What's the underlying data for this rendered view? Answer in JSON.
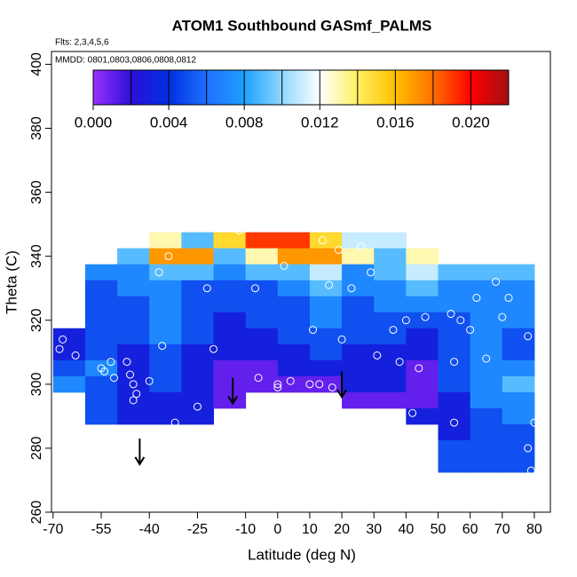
{
  "chart_data": {
    "type": "heatmap",
    "title": "ATOM1 Southbound GASmf_PALMS",
    "subtitle": "Flts: 2,3,4,5,6",
    "annotation": "MMDD: 0801,0803,0806,0808,0812",
    "xlabel": "Latitude (deg N)",
    "ylabel": "Theta (C)",
    "xlim": [
      -70.5,
      85
    ],
    "ylim": [
      260,
      404
    ],
    "xticks": [
      -70,
      -55,
      -40,
      -25,
      -10,
      0,
      10,
      20,
      30,
      40,
      50,
      60,
      70,
      80
    ],
    "yticks": [
      260,
      280,
      300,
      320,
      340,
      360,
      380,
      400
    ],
    "x": [
      -65,
      -55,
      -45,
      -35,
      -25,
      -15,
      -5,
      5,
      15,
      25,
      35,
      45,
      55,
      65,
      75
    ],
    "y": [
      345,
      340,
      335,
      330,
      325,
      320,
      315,
      310,
      305,
      300,
      295,
      290,
      285,
      280,
      275
    ],
    "z": [
      [
        null,
        null,
        null,
        0.013,
        0.009,
        0.015,
        0.019,
        0.019,
        0.015,
        0.011,
        0.011,
        null,
        null,
        null,
        null
      ],
      [
        null,
        null,
        0.009,
        0.017,
        0.017,
        0.009,
        0.013,
        0.017,
        0.017,
        0.013,
        0.009,
        0.013,
        null,
        null,
        null
      ],
      [
        null,
        0.007,
        0.007,
        0.009,
        0.009,
        0.007,
        0.009,
        0.009,
        0.011,
        0.007,
        0.009,
        0.011,
        0.009,
        0.009,
        0.009
      ],
      [
        null,
        0.005,
        0.007,
        0.007,
        0.005,
        0.005,
        0.005,
        0.007,
        0.009,
        0.007,
        0.007,
        0.009,
        0.007,
        0.007,
        0.007
      ],
      [
        null,
        0.005,
        0.005,
        0.007,
        0.005,
        0.005,
        0.005,
        0.005,
        0.007,
        0.005,
        0.007,
        0.007,
        0.007,
        0.007,
        0.007
      ],
      [
        null,
        0.005,
        0.005,
        0.007,
        0.005,
        0.003,
        0.005,
        0.005,
        0.007,
        0.005,
        0.005,
        0.005,
        0.005,
        0.007,
        0.007
      ],
      [
        0.003,
        0.005,
        0.005,
        0.007,
        0.005,
        0.003,
        0.003,
        0.005,
        0.005,
        0.005,
        0.005,
        0.003,
        0.005,
        0.007,
        0.005
      ],
      [
        0.003,
        0.005,
        0.003,
        0.005,
        0.003,
        0.003,
        0.003,
        0.003,
        0.005,
        0.003,
        0.003,
        0.003,
        0.005,
        0.007,
        0.005
      ],
      [
        0.005,
        0.007,
        0.003,
        0.005,
        0.003,
        0.001,
        0.001,
        0.003,
        0.003,
        0.003,
        0.003,
        0.001,
        0.005,
        0.007,
        0.007
      ],
      [
        0.007,
        0.005,
        0.003,
        0.005,
        0.003,
        0.001,
        0.001,
        0.001,
        0.001,
        0.003,
        0.003,
        0.001,
        0.005,
        0.007,
        0.009
      ],
      [
        null,
        0.005,
        0.003,
        0.003,
        0.003,
        0.001,
        null,
        null,
        null,
        0.001,
        0.001,
        0.001,
        0.003,
        0.007,
        0.007
      ],
      [
        null,
        0.005,
        0.003,
        0.003,
        0.003,
        null,
        null,
        null,
        null,
        null,
        null,
        0.003,
        0.003,
        0.005,
        0.007
      ],
      [
        null,
        null,
        null,
        null,
        null,
        null,
        null,
        null,
        null,
        null,
        null,
        null,
        0.003,
        0.005,
        0.005
      ],
      [
        null,
        null,
        null,
        null,
        null,
        null,
        null,
        null,
        null,
        null,
        null,
        null,
        0.005,
        0.005,
        0.005
      ],
      [
        null,
        null,
        null,
        null,
        null,
        null,
        null,
        null,
        null,
        null,
        null,
        null,
        0.005,
        0.005,
        0.005
      ]
    ],
    "colorscale": {
      "breaks": [
        0,
        0.002,
        0.004,
        0.006,
        0.008,
        0.01,
        0.012,
        0.014,
        0.016,
        0.018,
        0.02,
        0.022
      ],
      "colors": [
        "#9b30ff",
        "#2a10d8",
        "#0030e0",
        "#1f70ff",
        "#1ea0ff",
        "#90d8ff",
        "#ffffff",
        "#fff060",
        "#ffc000",
        "#ff7000",
        "#ff0000",
        "#a01010"
      ]
    },
    "colorbar_ticks": [
      {
        "value": 0,
        "label": "0.000"
      },
      {
        "value": 0.004,
        "label": "0.004"
      },
      {
        "value": 0.008,
        "label": "0.008"
      },
      {
        "value": 0.012,
        "label": "0.012"
      },
      {
        "value": 0.016,
        "label": "0.016"
      },
      {
        "value": 0.02,
        "label": "0.020"
      }
    ],
    "points": {
      "x": [
        -68,
        -67,
        -63,
        -55,
        -54,
        -52,
        -51,
        -47,
        -46,
        -45,
        -45,
        -44,
        -40,
        -37,
        -34,
        -36,
        -32,
        -22,
        -20,
        -25,
        -12,
        -7,
        -6,
        0,
        0,
        1,
        2,
        4,
        10,
        11,
        13,
        14,
        16,
        17,
        19,
        20,
        23,
        26,
        29,
        31,
        36,
        38,
        40,
        42,
        44,
        46,
        54,
        55,
        57,
        55,
        60,
        62,
        65,
        68,
        72,
        70,
        78,
        78,
        79,
        80
      ],
      "y": [
        311,
        314,
        309,
        305,
        304,
        307,
        302,
        307,
        303,
        300,
        295,
        297,
        301,
        335,
        340,
        312,
        288,
        330,
        311,
        293,
        348,
        330,
        302,
        300,
        299,
        349,
        337,
        301,
        300,
        317,
        300,
        345,
        331,
        299,
        342,
        314,
        330,
        343,
        335,
        309,
        317,
        307,
        320,
        291,
        305,
        321,
        322,
        307,
        320,
        288,
        317,
        327,
        308,
        332,
        327,
        321,
        315,
        280,
        273,
        288
      ]
    },
    "arrows": [
      {
        "x": -43,
        "from": 283,
        "to": 275
      },
      {
        "x": -14,
        "from": 302,
        "to": 294
      },
      {
        "x": 20,
        "from": 304,
        "to": 296
      }
    ]
  }
}
